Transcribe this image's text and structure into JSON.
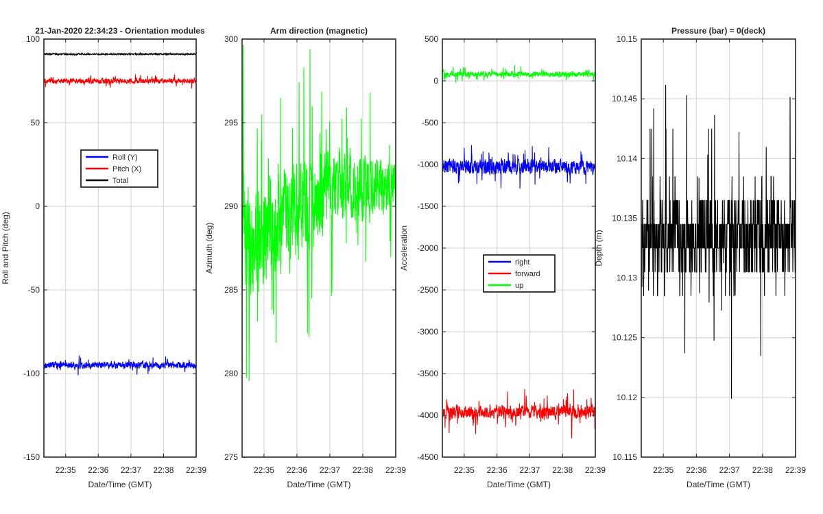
{
  "figure": {
    "background": "#ffffff",
    "grid_color": "#d9d9d9",
    "axis_color": "#262626"
  },
  "chart_data": [
    {
      "type": "line",
      "title": "21-Jan-2020 22:34:23 - Orientation modules",
      "xlabel": "Date/Time (GMT)",
      "ylabel": "Roll and Pitch (deg)",
      "xlim": [
        22.333,
        27.0
      ],
      "x_ticks": [
        23,
        24,
        25,
        26,
        27
      ],
      "x_tick_labels": [
        "22:35",
        "22:36",
        "22:37",
        "22:38",
        "22:39"
      ],
      "ylim": [
        -150,
        100
      ],
      "y_ticks": [
        -150,
        -100,
        -50,
        0,
        50,
        100
      ],
      "y_tick_labels": [
        "-150",
        "-100",
        "-50",
        "0",
        "50",
        "100"
      ],
      "grid": true,
      "legend": {
        "placement": "center",
        "entries": [
          "Roll (Y)",
          "Pitch (X)",
          "Total"
        ]
      },
      "series": [
        {
          "name": "Roll (Y)",
          "color": "#0000ff",
          "base": -95,
          "amp": 2.8,
          "spike": 4,
          "drift": 0
        },
        {
          "name": "Pitch (X)",
          "color": "#ff0000",
          "base": 75,
          "amp": 2.2,
          "spike": 3,
          "drift": 0
        },
        {
          "name": "Total",
          "color": "#000000",
          "base": 91,
          "amp": 0.5,
          "spike": 0.8,
          "drift": 0
        }
      ]
    },
    {
      "type": "line",
      "title": "Arm direction (magnetic)",
      "xlabel": "Date/Time (GMT)",
      "ylabel": "Azimuth (deg)",
      "xlim": [
        22.333,
        27.0
      ],
      "x_ticks": [
        23,
        24,
        25,
        26,
        27
      ],
      "x_tick_labels": [
        "22:35",
        "22:36",
        "22:37",
        "22:38",
        "22:39"
      ],
      "ylim": [
        275,
        300
      ],
      "y_ticks": [
        275,
        280,
        285,
        290,
        295,
        300
      ],
      "y_tick_labels": [
        "275",
        "280",
        "285",
        "290",
        "295",
        "300"
      ],
      "grid": true,
      "legend": null,
      "series": [
        {
          "name": "Azimuth",
          "color": "#00ff00",
          "base": 288,
          "amp": 3.0,
          "spike": 6,
          "drift": 3.2
        }
      ]
    },
    {
      "type": "line",
      "title": "",
      "xlabel": "Date/Time (GMT)",
      "ylabel": "Acceleration",
      "xlim": [
        22.333,
        27.0
      ],
      "x_ticks": [
        23,
        24,
        25,
        26,
        27
      ],
      "x_tick_labels": [
        "22:35",
        "22:36",
        "22:37",
        "22:38",
        "22:39"
      ],
      "ylim": [
        -4500,
        500
      ],
      "y_ticks": [
        -4500,
        -4000,
        -3500,
        -3000,
        -2500,
        -2000,
        -1500,
        -1000,
        -500,
        0,
        500
      ],
      "y_tick_labels": [
        "-4500",
        "-4000",
        "-3500",
        "-3000",
        "-2500",
        "-2000",
        "-1500",
        "-1000",
        "-500",
        "0",
        "500"
      ],
      "grid": true,
      "legend": {
        "placement": "center",
        "entries": [
          "right",
          "forward",
          "up"
        ]
      },
      "series": [
        {
          "name": "right",
          "color": "#0000ff",
          "base": -1030,
          "amp": 120,
          "spike": 250,
          "drift": 0
        },
        {
          "name": "forward",
          "color": "#ff0000",
          "base": -3960,
          "amp": 110,
          "spike": 250,
          "drift": 0
        },
        {
          "name": "up",
          "color": "#00ff00",
          "base": 80,
          "amp": 45,
          "spike": 90,
          "drift": 0
        }
      ]
    },
    {
      "type": "line",
      "title": "Pressure (bar) = 0(deck)",
      "xlabel": "Date/Time (GMT)",
      "ylabel": "Depth (m)",
      "xlim": [
        22.333,
        27.0
      ],
      "x_ticks": [
        23,
        24,
        25,
        26,
        27
      ],
      "x_tick_labels": [
        "22:35",
        "22:36",
        "22:37",
        "22:38",
        "22:39"
      ],
      "ylim": [
        10.115,
        10.15
      ],
      "y_ticks": [
        10.115,
        10.12,
        10.125,
        10.13,
        10.135,
        10.14,
        10.145,
        10.15
      ],
      "y_tick_labels": [
        "10.115",
        "10.12",
        "10.125",
        "10.13",
        "10.135",
        "10.14",
        "10.145",
        "10.15"
      ],
      "grid": true,
      "legend": null,
      "quantized_levels": [
        10.1285,
        10.1305,
        10.1325,
        10.1345,
        10.1365,
        10.1385,
        10.1425
      ],
      "series": [
        {
          "name": "Depth",
          "color": "#000000",
          "base": 10.1335,
          "amp": 0.0045,
          "spike": 0.009,
          "drift": 0
        }
      ]
    }
  ]
}
